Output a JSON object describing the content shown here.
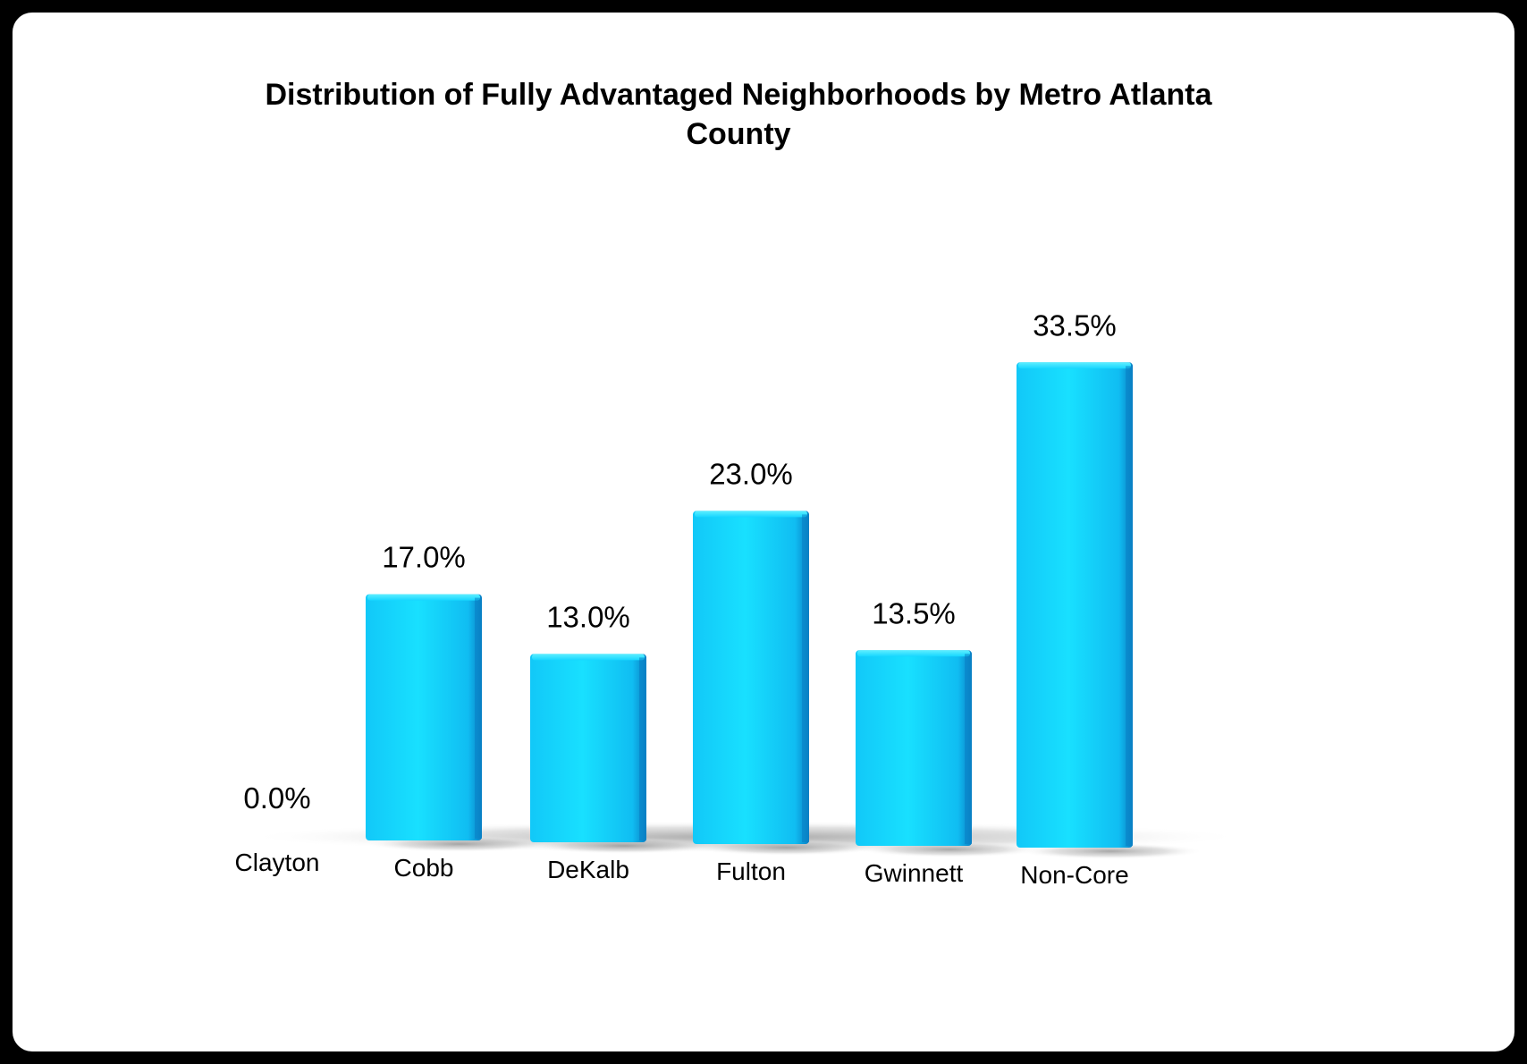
{
  "chart_data": {
    "type": "bar",
    "title": "Distribution of Fully Advantaged Neighborhoods by Metro Atlanta County",
    "title_lines": [
      "Distribution of Fully Advantaged Neighborhoods by Metro Atlanta",
      "County"
    ],
    "categories": [
      "Clayton",
      "Cobb",
      "DeKalb",
      "Fulton",
      "Gwinnett",
      "Non-Core"
    ],
    "values": [
      0.0,
      17.0,
      13.0,
      23.0,
      13.5,
      33.5
    ],
    "value_labels": [
      "0.0%",
      "17.0%",
      "13.0%",
      "23.0%",
      "13.5%",
      "33.5%"
    ],
    "unit": "%",
    "xlabel": "",
    "ylabel": "",
    "ylim": [
      0,
      40
    ],
    "grid": false,
    "legend": "none",
    "colors": {
      "bar_light": "#16dcff",
      "bar_mid": "#10c2f5",
      "bar_dark": "#0a7fc4",
      "text": "#000000",
      "frame": "#000000",
      "background": "#ffffff"
    }
  }
}
